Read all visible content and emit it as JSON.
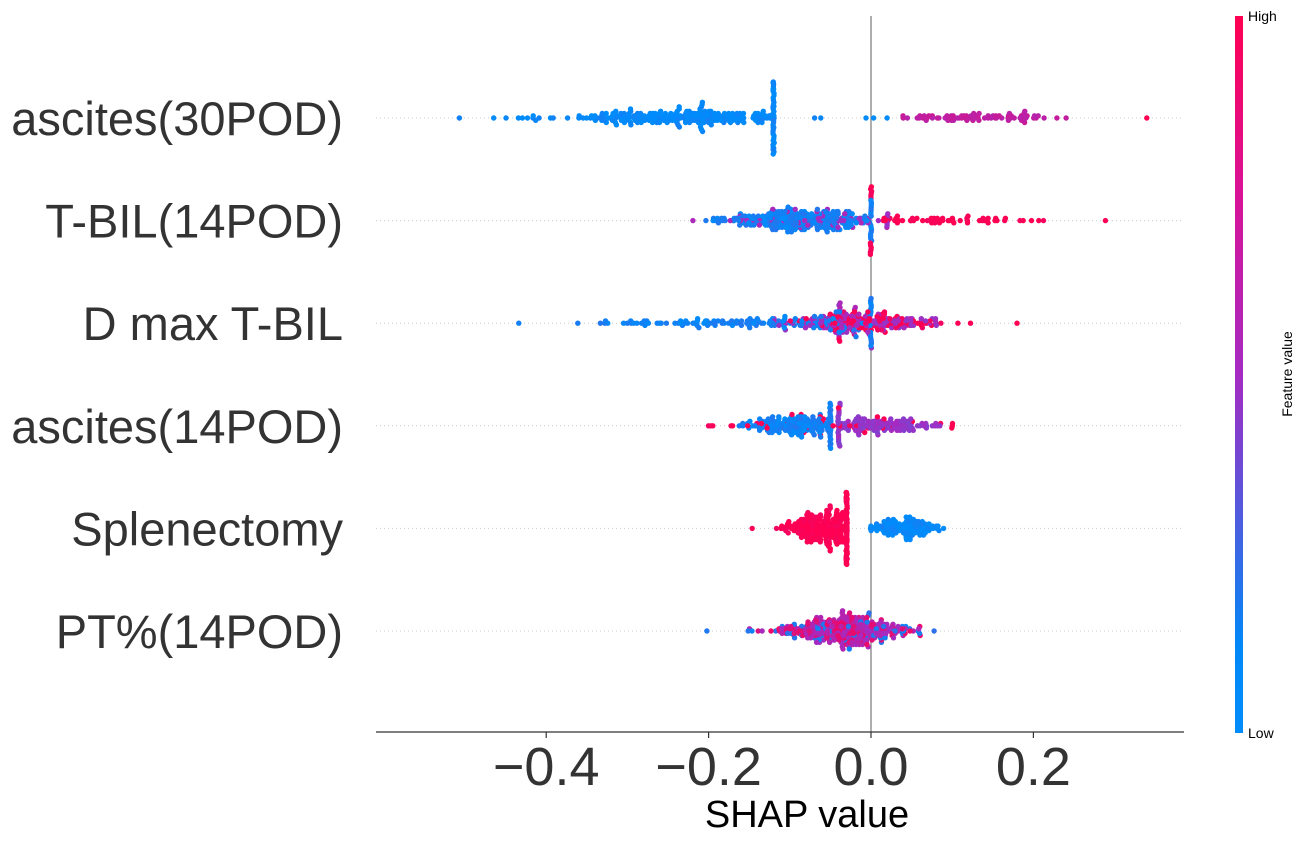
{
  "chart_data": {
    "type": "scatter",
    "subtype": "shap-beeswarm",
    "title": "",
    "xlabel": "SHAP value",
    "ylabel": "",
    "xlim": [
      -0.6,
      0.39
    ],
    "x_ticks": [
      -0.4,
      -0.2,
      0.0,
      0.2
    ],
    "x_tick_labels": [
      "−0.4",
      "−0.2",
      "0.0",
      "0.2"
    ],
    "zero_line": 0.0,
    "grid": false,
    "colorbar": {
      "title": "Feature value",
      "high_label": "High",
      "low_label": "Low",
      "low_color": "#008bfb",
      "high_color": "#ff0052"
    },
    "features": [
      {
        "name": "ascites(30POD)",
        "groups": [
          {
            "feature_value": 0.0,
            "center": -0.21,
            "spread": 0.085,
            "count": 300,
            "min": -0.54,
            "max": -0.12
          },
          {
            "feature_value": 0.0,
            "center": -0.03,
            "spread": 0.04,
            "count": 5,
            "min": -0.07,
            "max": 0.02
          },
          {
            "feature_value": 0.65,
            "center": 0.13,
            "spread": 0.05,
            "count": 80,
            "min": 0.04,
            "max": 0.29
          }
        ],
        "outliers": [
          {
            "x": 0.34,
            "feature_value": 1.0
          }
        ]
      },
      {
        "name": "T-BIL(14POD)",
        "groups": [
          {
            "feature_value": 0.05,
            "center": -0.08,
            "spread": 0.05,
            "count": 260,
            "min": -0.32,
            "max": 0.0
          },
          {
            "feature_value": 0.5,
            "center": -0.05,
            "spread": 0.07,
            "count": 60,
            "min": -0.22,
            "max": 0.02
          },
          {
            "feature_value": 1.0,
            "center": 0.08,
            "spread": 0.08,
            "count": 70,
            "min": 0.0,
            "max": 0.29
          }
        ],
        "outliers": []
      },
      {
        "name": "D max T-BIL",
        "groups": [
          {
            "feature_value": 0.05,
            "center": -0.13,
            "spread": 0.1,
            "count": 150,
            "min": -0.56,
            "max": 0.0
          },
          {
            "feature_value": 0.5,
            "center": -0.02,
            "spread": 0.05,
            "count": 130,
            "min": -0.12,
            "max": 0.08
          },
          {
            "feature_value": 0.95,
            "center": 0.0,
            "spread": 0.04,
            "count": 100,
            "min": -0.1,
            "max": 0.13
          }
        ],
        "outliers": [
          {
            "x": 0.18,
            "feature_value": 1.0
          }
        ]
      },
      {
        "name": "ascites(14POD)",
        "groups": [
          {
            "feature_value": 0.05,
            "center": -0.09,
            "spread": 0.03,
            "count": 170,
            "min": -0.34,
            "max": -0.05
          },
          {
            "feature_value": 0.45,
            "center": 0.01,
            "spread": 0.04,
            "count": 130,
            "min": -0.04,
            "max": 0.14
          },
          {
            "feature_value": 1.0,
            "center": -0.06,
            "spread": 0.08,
            "count": 40,
            "min": -0.29,
            "max": 0.1
          }
        ],
        "outliers": []
      },
      {
        "name": "Splenectomy",
        "groups": [
          {
            "feature_value": 1.0,
            "center": -0.05,
            "spread": 0.03,
            "count": 270,
            "min": -0.26,
            "max": -0.03
          },
          {
            "feature_value": 0.0,
            "center": 0.04,
            "spread": 0.02,
            "count": 120,
            "min": 0.0,
            "max": 0.14
          }
        ],
        "outliers": []
      },
      {
        "name": "PT%(14POD)",
        "groups": [
          {
            "feature_value": 0.1,
            "center": -0.03,
            "spread": 0.05,
            "count": 60,
            "min": -0.29,
            "max": 0.17
          },
          {
            "feature_value": 0.55,
            "center": -0.03,
            "spread": 0.035,
            "count": 170,
            "min": -0.15,
            "max": 0.09
          },
          {
            "feature_value": 0.85,
            "center": -0.04,
            "spread": 0.04,
            "count": 120,
            "min": -0.17,
            "max": 0.06
          }
        ],
        "outliers": []
      }
    ]
  }
}
